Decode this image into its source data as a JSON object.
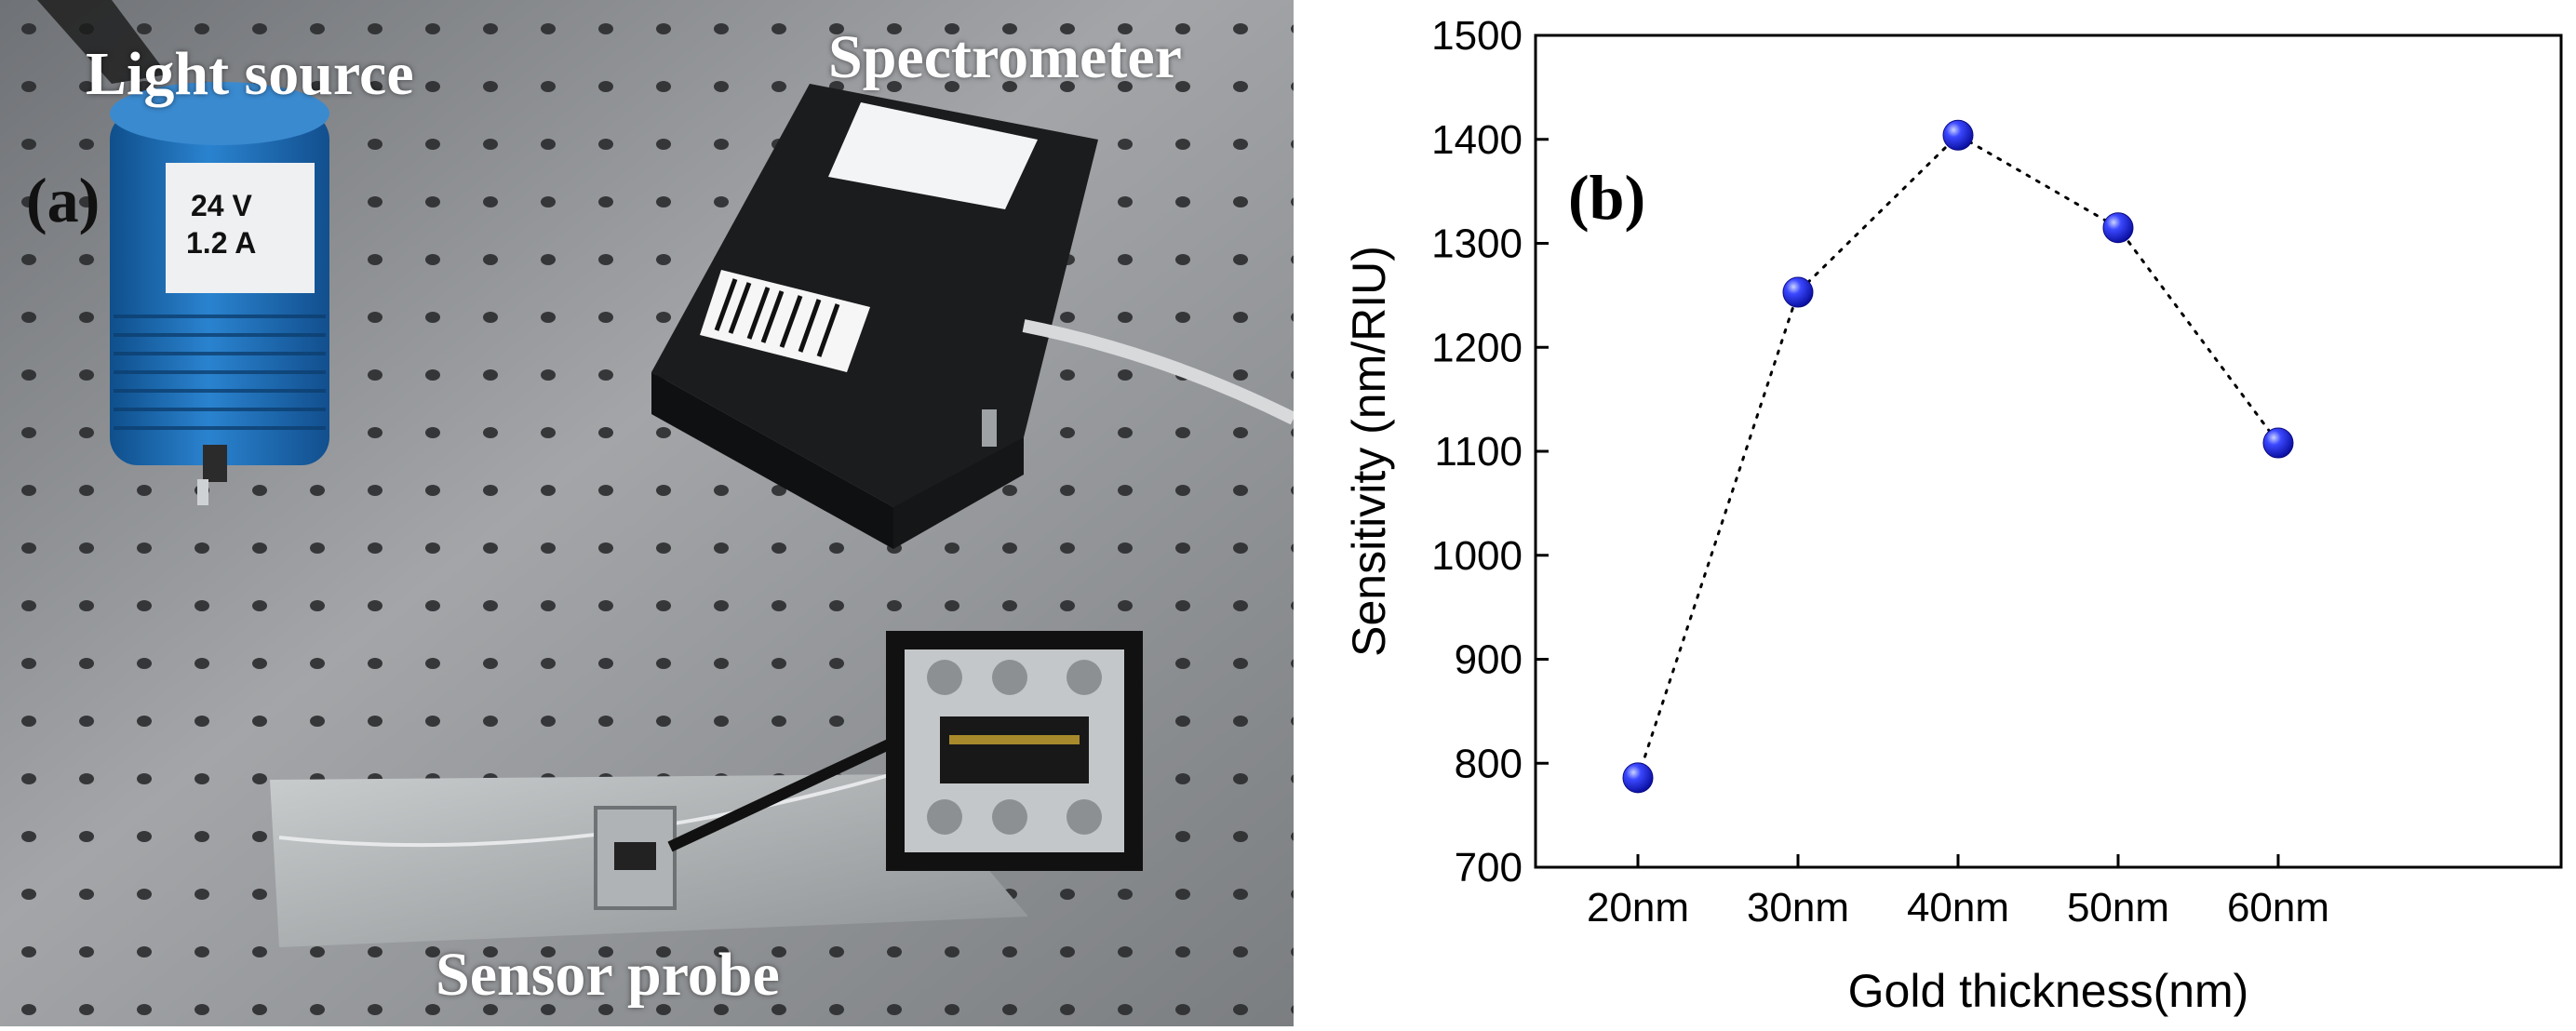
{
  "photo": {
    "panel_label": "(a)",
    "labels": {
      "light_source": "Light source",
      "spectrometer": "Spectrometer",
      "sensor_probe": "Sensor probe"
    },
    "light_source_sticker": {
      "line1": "24 V",
      "line2": "1.2 A"
    },
    "colors": {
      "table": "#8d8f92",
      "light_source_body": "#1f6db4",
      "spectrometer_body": "#1b1c1e",
      "probe_plate": "#b6b9bb"
    }
  },
  "chart_data": {
    "type": "scatter",
    "panel_label": "(b)",
    "xlabel": "Gold thickness(nm)",
    "ylabel": "Sensitivity (nm/RIU)",
    "categories": [
      "20nm",
      "30nm",
      "40nm",
      "50nm",
      "60nm"
    ],
    "values": [
      786,
      1253,
      1404,
      1315,
      1108
    ],
    "ylim": [
      700,
      1500
    ],
    "yticks": [
      "700",
      "800",
      "900",
      "1000",
      "1100",
      "1200",
      "1300",
      "1400",
      "1500"
    ],
    "connector": "dotted",
    "marker_color": "#1515e6",
    "grid": false
  }
}
